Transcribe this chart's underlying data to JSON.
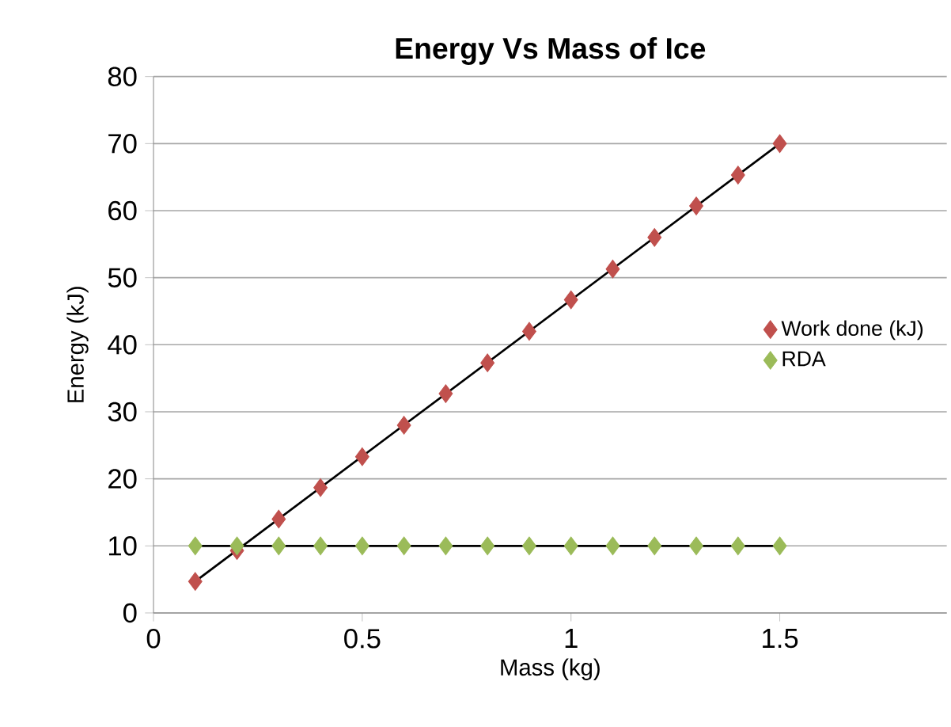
{
  "chart_data": {
    "type": "scatter",
    "title": "Energy Vs Mass of Ice",
    "xlabel": "Mass (kg)",
    "ylabel": "Energy (kJ)",
    "xlim": [
      0,
      1.9
    ],
    "xticks": [
      0,
      0.5,
      1,
      1.5
    ],
    "ylim": [
      0,
      80
    ],
    "yticks": [
      0,
      10,
      20,
      30,
      40,
      50,
      60,
      70,
      80
    ],
    "grid": "y",
    "legend": "right",
    "series": [
      {
        "name": "Work done (kJ)",
        "color": "#c0504d",
        "marker": "diamond",
        "x": [
          0.1,
          0.2,
          0.3,
          0.4,
          0.5,
          0.6,
          0.7,
          0.8,
          0.9,
          1.0,
          1.1,
          1.2,
          1.3,
          1.4,
          1.5
        ],
        "values": [
          4.7,
          9.3,
          14.0,
          18.7,
          23.3,
          28.0,
          32.7,
          37.3,
          42.0,
          46.7,
          51.3,
          56.0,
          60.7,
          65.3,
          70.0
        ]
      },
      {
        "name": "RDA",
        "color": "#9bbb59",
        "marker": "diamond",
        "x": [
          0.1,
          0.2,
          0.3,
          0.4,
          0.5,
          0.6,
          0.7,
          0.8,
          0.9,
          1.0,
          1.1,
          1.2,
          1.3,
          1.4,
          1.5
        ],
        "values": [
          10,
          10,
          10,
          10,
          10,
          10,
          10,
          10,
          10,
          10,
          10,
          10,
          10,
          10,
          10
        ]
      },
      {
        "type": "line",
        "color": "#000000",
        "marker": "none",
        "x": [
          0.1,
          1.5
        ],
        "values": [
          4.7,
          70.0
        ]
      },
      {
        "type": "line",
        "color": "#000000",
        "marker": "none",
        "x": [
          0.1,
          1.5
        ],
        "values": [
          10,
          10
        ]
      }
    ]
  }
}
